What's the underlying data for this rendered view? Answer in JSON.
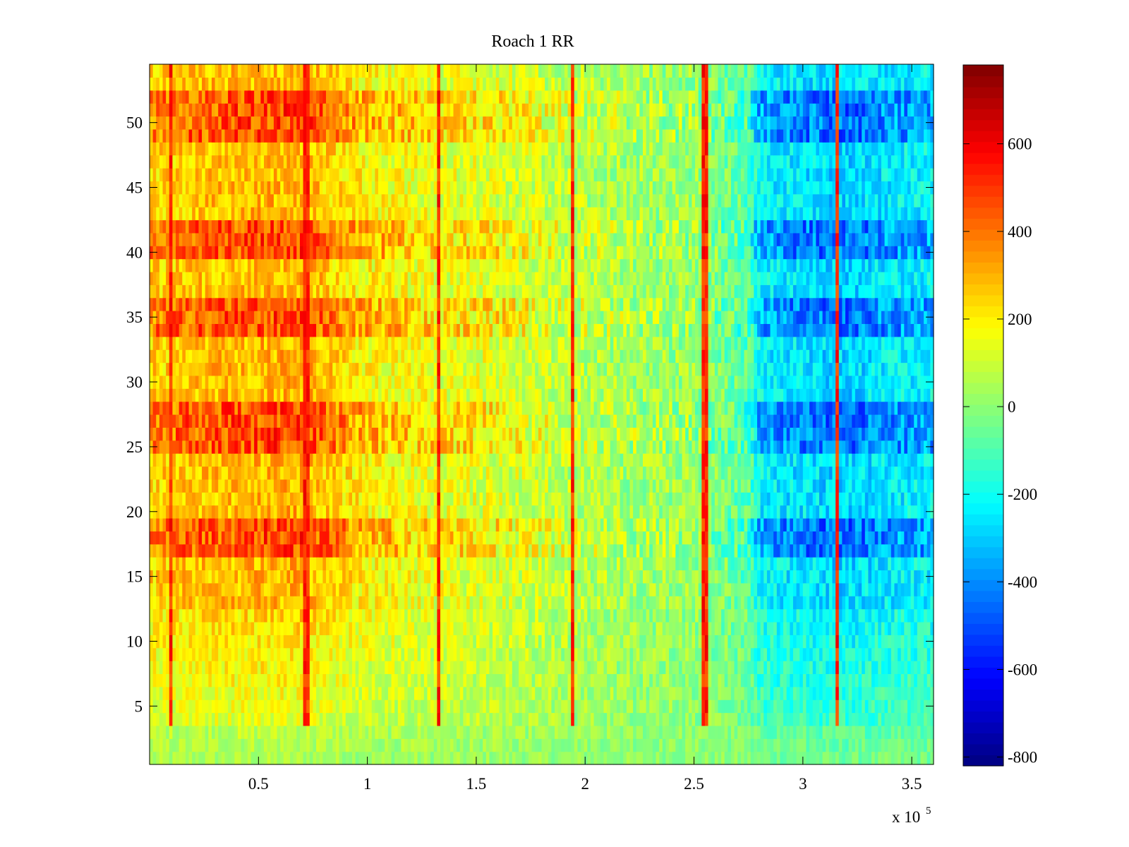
{
  "chart_data": {
    "type": "heatmap",
    "title": "Roach 1 RR",
    "xlabel": "",
    "ylabel": "",
    "x_exponent_label": {
      "base": "x 10",
      "exponent": "5"
    },
    "xlim": [
      0,
      3.6
    ],
    "ylim": [
      0.5,
      54.5
    ],
    "x_ticks": [
      0.5,
      1,
      1.5,
      2,
      2.5,
      3,
      3.5
    ],
    "x_tick_labels": [
      "0.5",
      "1",
      "1.5",
      "2",
      "2.5",
      "3",
      "3.5"
    ],
    "y_ticks": [
      5,
      10,
      15,
      20,
      25,
      30,
      35,
      40,
      45,
      50
    ],
    "y_tick_labels": [
      "5",
      "10",
      "15",
      "20",
      "25",
      "30",
      "35",
      "40",
      "45",
      "50"
    ],
    "rows": 54,
    "colormap": "jet",
    "colorbar": {
      "range": [
        -820,
        780
      ],
      "ticks": [
        -800,
        -600,
        -400,
        -200,
        0,
        200,
        400,
        600
      ],
      "tick_labels": [
        "-800",
        "-600",
        "-400",
        "-200",
        "0",
        "200",
        "400",
        "600"
      ]
    },
    "column_profile": {
      "x": [
        0.0,
        0.2,
        0.4,
        0.7,
        1.0,
        1.3,
        1.6,
        1.9,
        2.2,
        2.5,
        2.75,
        2.8,
        3.0,
        3.2,
        3.4,
        3.6
      ],
      "mean": [
        320,
        360,
        380,
        400,
        250,
        200,
        170,
        100,
        50,
        20,
        -100,
        -300,
        -350,
        -380,
        -320,
        -300
      ],
      "note": "approximate typical value across upper rows (36-52); lower rows damped toward ~0"
    },
    "vertical_streaks_x": [
      0.1,
      0.72,
      1.33,
      1.94,
      2.55,
      3.16
    ],
    "strong_blue_rows": [
      [
        17,
        19
      ],
      [
        25,
        28
      ],
      [
        34,
        36
      ],
      [
        40,
        42
      ],
      [
        49,
        52
      ]
    ]
  }
}
